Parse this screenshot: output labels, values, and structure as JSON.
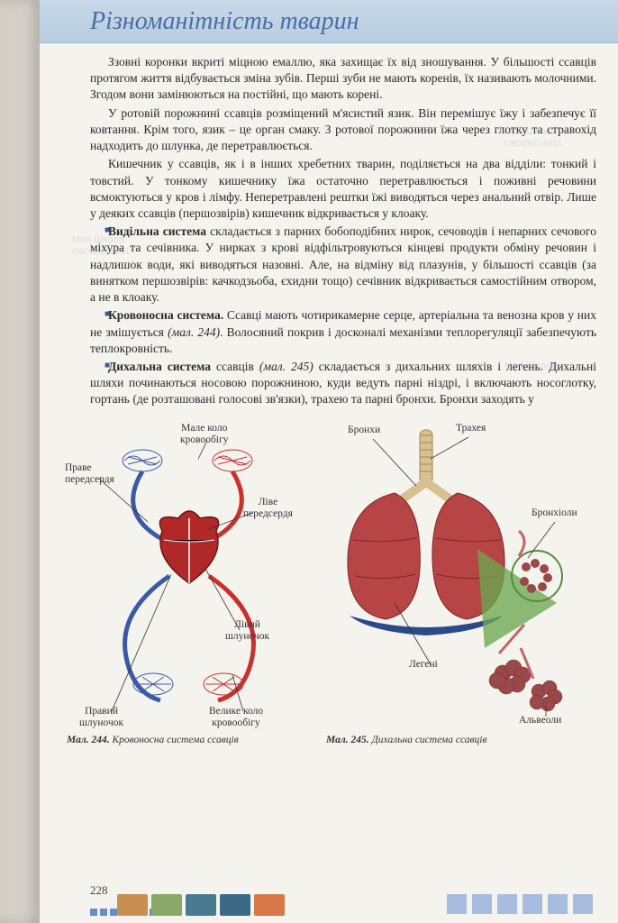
{
  "header": {
    "title": "Різноманітність тварин"
  },
  "paragraphs": {
    "p1": "Ззовні коронки вкриті міцною емаллю, яка захищає їх від зношування. У більшості ссавців протягом життя відбувається зміна зубів. Перші зуби не мають коренів, їх називають молочними. Згодом вони замінюються на постійні, що мають корені.",
    "p2": "У ротовій порожнині ссавців розміщений м'ясистий язик. Він перемішує їжу і забезпечує її ковтання. Крім того, язик – це орган смаку. З ротової порожнини їжа через глотку та стравохід надходить до шлунка, де перетравлюється.",
    "p3": "Кишечник у ссавців, як і в інших хребетних тварин, поділяється на два відділи: тонкий і товстий. У тонкому кишечнику їжа остаточно перетравлюється і поживні речовини всмоктуються у кров і лімфу. Неперетравлені рештки їжі виводяться через анальний отвір. Лише у деяких ссавців (першозвірів) кишечник відкривається у клоаку.",
    "p4_term": "Видільна система",
    "p4_rest": " складається з парних бобоподібних нирок, сечоводів і непарних сечового міхура та сечівника. У нирках з крові відфільтровуються кінцеві продукти обміну речовин і надлишок води, які виводяться назовні. Але, на відміну від плазунів, у більшості ссавців (за винятком першозвірів: качкодзьоба, єхидни тощо) сечівник відкривається самостійним отвором, а не в клоаку.",
    "p5_term": "Кровоносна система.",
    "p5_rest": " Ссавці мають чотирикамерне серце, артеріальна та венозна кров у них не змішується ",
    "p5_ref": "(мал. 244)",
    "p5_rest2": ". Волосяний покрив і досконалі механізми теплорегуляції забезпечують теплокровність.",
    "p6_term": "Дихальна система",
    "p6_rest": " ссавців ",
    "p6_ref": "(мал. 245)",
    "p6_rest2": " складається з дихальних шляхів і легень. Дихальні шляхи починаються носовою порожниною, куди ведуть парні ніздрі, і включають носоглотку, гортань (де розташовані голосові зв'язки), трахею та парні бронхи. Бронхи заходять у"
  },
  "fig244": {
    "labels": {
      "right_atrium": "Праве\nпередсердя",
      "small_circ": "Мале коло\nкровообігу",
      "left_atrium": "Ліве\nпередсердя",
      "left_vent": "Лівий\nшлуночок",
      "right_vent": "Правий\nшлуночок",
      "large_circ": "Велике коло\nкровообігу"
    },
    "caption_num": "Мал. 244.",
    "caption_text": " Кровоносна система ссавців",
    "colors": {
      "artery": "#c93030",
      "vein": "#3a5aa8",
      "heart": "#b02828"
    }
  },
  "fig245": {
    "labels": {
      "bronchi": "Бронхи",
      "trachea": "Трахея",
      "bronchioles": "Бронхіоли",
      "lungs": "Легені",
      "alveoli": "Альвеоли"
    },
    "caption_num": "Мал. 245.",
    "caption_text": " Дихальна система ссавців",
    "colors": {
      "lung": "#b84545",
      "trachea": "#d8c090",
      "highlight": "#6aa850",
      "alveoli": "#9a4848"
    }
  },
  "page_number": "228",
  "watermark_text": "Моя Школа",
  "watermark_sub": "OBOZREVATEL",
  "footer_thumb_colors": [
    "#c89050",
    "#8aa868",
    "#4a7a90",
    "#3a6a88",
    "#d87848"
  ]
}
